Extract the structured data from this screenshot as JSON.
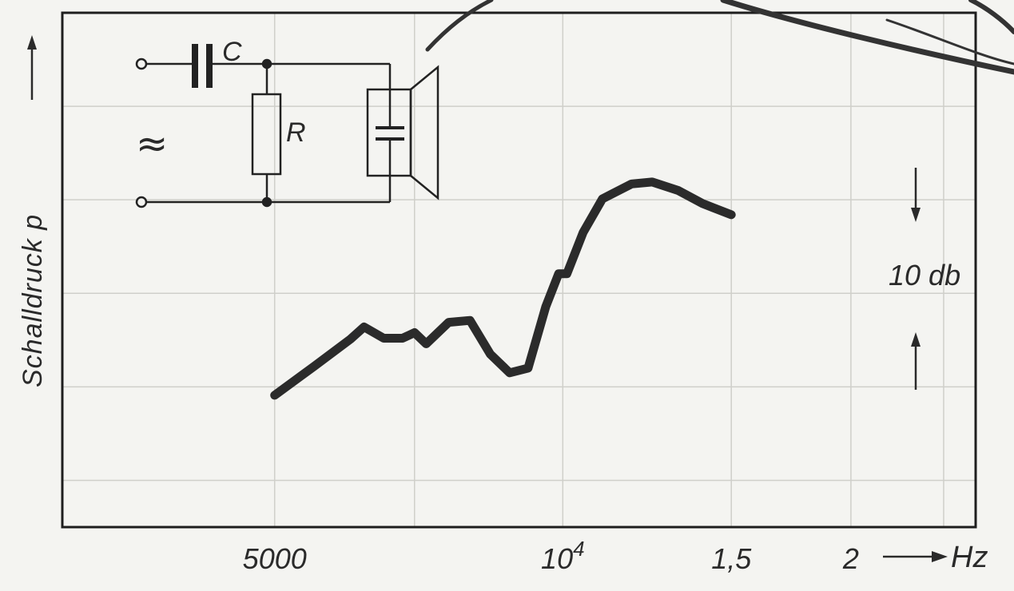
{
  "chart_data": {
    "type": "line",
    "ylabel": "Schalldruck p",
    "xunit": "Hz",
    "scale_label": "10 db",
    "x_scale": "log",
    "xlim": [
      3000,
      27000
    ],
    "ylim": [
      -55,
      0
    ],
    "grid": true,
    "x_ticks": [
      {
        "value": 5000,
        "label": "5000"
      },
      {
        "value": 10000,
        "label": "10",
        "sup": "4"
      },
      {
        "value": 15000,
        "label": "1,5"
      },
      {
        "value": 20000,
        "label": "2"
      }
    ],
    "series": [
      {
        "x": [
          5000,
          5500,
          6000,
          6200,
          6500,
          6800,
          7000,
          7200,
          7600,
          8000,
          8400,
          8800,
          9200,
          9600,
          9900,
          10100,
          10500,
          11000,
          11800,
          12400,
          13200,
          14000,
          15000
        ],
        "y": [
          -40.9,
          -37.8,
          -34.9,
          -33.6,
          -34.8,
          -34.8,
          -34.2,
          -35.4,
          -33.1,
          -32.9,
          -36.5,
          -38.5,
          -38.0,
          -31.4,
          -27.9,
          -27.9,
          -23.5,
          -19.9,
          -18.3,
          -18.1,
          -19.0,
          -20.4,
          -21.6
        ]
      }
    ]
  },
  "circuit": {
    "capacitor_label": "C",
    "resistor_label": "R",
    "ac_symbol": "≈"
  }
}
